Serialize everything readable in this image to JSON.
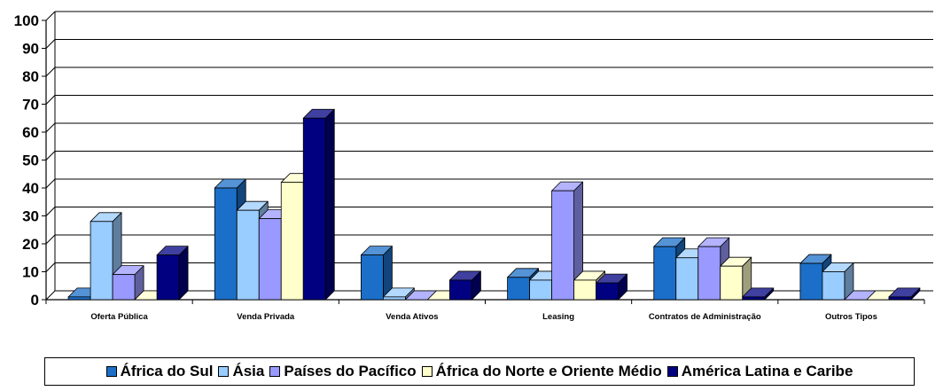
{
  "chart_data": {
    "type": "bar",
    "style": "3d-clustered-column",
    "categories": [
      "Oferta Pública",
      "Venda Privada",
      "Venda Ativos",
      "Leasing",
      "Contratos de Administração",
      "Outros Tipos"
    ],
    "series": [
      {
        "name": "África do Sul",
        "color": "#1B6FC8",
        "values": [
          1,
          40,
          16,
          8,
          19,
          13
        ]
      },
      {
        "name": "Ásia",
        "color": "#99CCFF",
        "values": [
          28,
          32,
          1,
          7,
          15,
          10
        ]
      },
      {
        "name": "Países do Pacífico",
        "color": "#9999FF",
        "values": [
          9,
          29,
          0,
          39,
          19,
          0
        ]
      },
      {
        "name": "África do Norte e Oriente Médio",
        "color": "#FFFFCC",
        "values": [
          0,
          42,
          0,
          7,
          12,
          0
        ]
      },
      {
        "name": "América Latina e Caribe",
        "color": "#000080",
        "values": [
          16,
          65,
          7,
          6,
          1,
          1
        ]
      }
    ],
    "yticks": [
      "0",
      "10",
      "20",
      "30",
      "40",
      "50",
      "60",
      "70",
      "80",
      "90",
      "100"
    ],
    "ylim": [
      0,
      100
    ],
    "grid": true,
    "legend_position": "bottom",
    "title": "",
    "xlabel": "",
    "ylabel": ""
  }
}
